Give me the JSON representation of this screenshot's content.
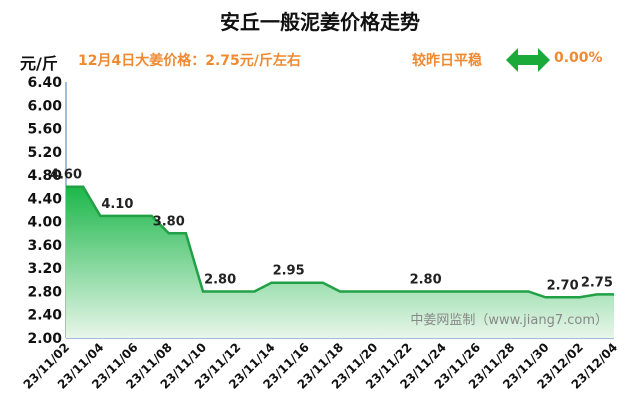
{
  "header": {
    "unit": "元/斤",
    "price_note": "12月4日大姜价格：2.75元/斤左右",
    "compare_label": "较昨日平稳",
    "compare_pct": "0.00%",
    "compare_icon": "double-arrow-icon"
  },
  "watermark": "中姜网监制（www.jiang7.com）",
  "colors": {
    "line": "#22a046",
    "fill_top": "#1cb74a",
    "fill_bottom": "#e8f6ea",
    "accent": "#f08a32",
    "arrow": "#1aaa3a"
  },
  "chart_data": {
    "type": "area",
    "title": "安丘一般泥姜价格走势",
    "xlabel": "",
    "ylabel": "元/斤",
    "ylim": [
      2.0,
      6.4
    ],
    "yticks": [
      "2.00",
      "2.40",
      "2.80",
      "3.20",
      "3.60",
      "4.00",
      "4.40",
      "4.80",
      "5.20",
      "5.60",
      "6.00",
      "6.40"
    ],
    "xticks": [
      "23/11/02",
      "23/11/04",
      "23/11/06",
      "23/11/08",
      "23/11/10",
      "23/11/12",
      "23/11/14",
      "23/11/16",
      "23/11/18",
      "23/11/20",
      "23/11/22",
      "23/11/24",
      "23/11/26",
      "23/11/28",
      "23/11/30",
      "23/12/02",
      "23/12/04"
    ],
    "x": [
      "23/11/02",
      "23/11/03",
      "23/11/04",
      "23/11/05",
      "23/11/06",
      "23/11/07",
      "23/11/08",
      "23/11/09",
      "23/11/10",
      "23/11/11",
      "23/11/12",
      "23/11/13",
      "23/11/14",
      "23/11/15",
      "23/11/16",
      "23/11/17",
      "23/11/18",
      "23/11/19",
      "23/11/20",
      "23/11/21",
      "23/11/22",
      "23/11/23",
      "23/11/24",
      "23/11/25",
      "23/11/26",
      "23/11/27",
      "23/11/28",
      "23/11/29",
      "23/11/30",
      "23/12/01",
      "23/12/02",
      "23/12/03",
      "23/12/04"
    ],
    "values": [
      4.6,
      4.6,
      4.1,
      4.1,
      4.1,
      4.1,
      3.8,
      3.8,
      2.8,
      2.8,
      2.8,
      2.8,
      2.95,
      2.95,
      2.95,
      2.95,
      2.8,
      2.8,
      2.8,
      2.8,
      2.8,
      2.8,
      2.8,
      2.8,
      2.8,
      2.8,
      2.8,
      2.8,
      2.7,
      2.7,
      2.7,
      2.75,
      2.75
    ],
    "data_labels": [
      {
        "x": "23/11/02",
        "text": "4.60"
      },
      {
        "x": "23/11/05",
        "text": "4.10"
      },
      {
        "x": "23/11/08",
        "text": "3.80"
      },
      {
        "x": "23/11/11",
        "text": "2.80"
      },
      {
        "x": "23/11/15",
        "text": "2.95"
      },
      {
        "x": "23/11/23",
        "text": "2.80"
      },
      {
        "x": "23/12/01",
        "text": "2.70"
      },
      {
        "x": "23/12/03",
        "text": "2.75"
      }
    ],
    "grid": false,
    "legend": "none"
  }
}
